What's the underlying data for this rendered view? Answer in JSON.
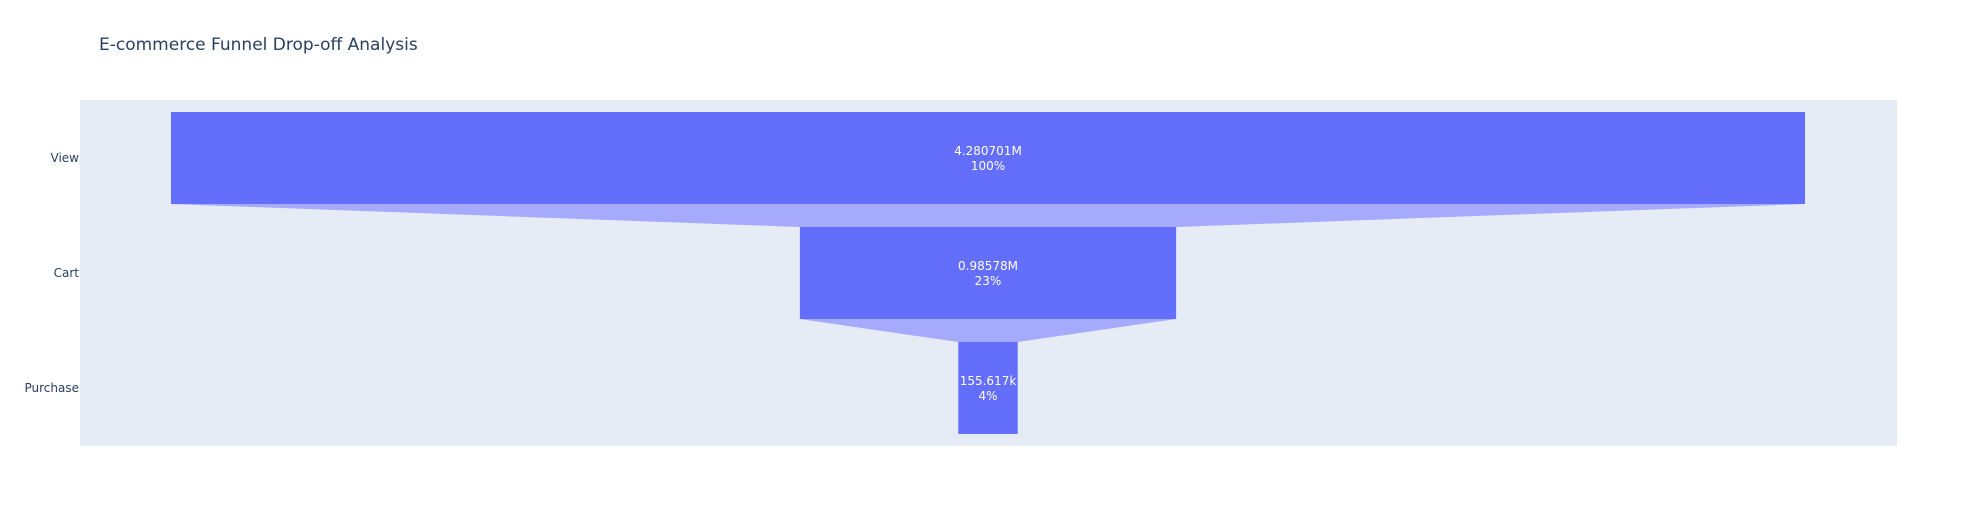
{
  "chart_data": {
    "type": "funnel",
    "title": "E-commerce Funnel Drop-off Analysis",
    "categories": [
      "View",
      "Cart",
      "Purchase"
    ],
    "values": [
      4280701,
      985780,
      155617
    ],
    "value_labels": [
      "4.280701M",
      "0.98578M",
      "155.617k"
    ],
    "percent_labels": [
      "100%",
      "23%",
      "4%"
    ],
    "colors": {
      "plot_background": "#e5ecf6",
      "bar": "#636efa",
      "connector": "#a5aafc",
      "text": "#2a3f5f",
      "bar_text": "#ffffff"
    }
  }
}
